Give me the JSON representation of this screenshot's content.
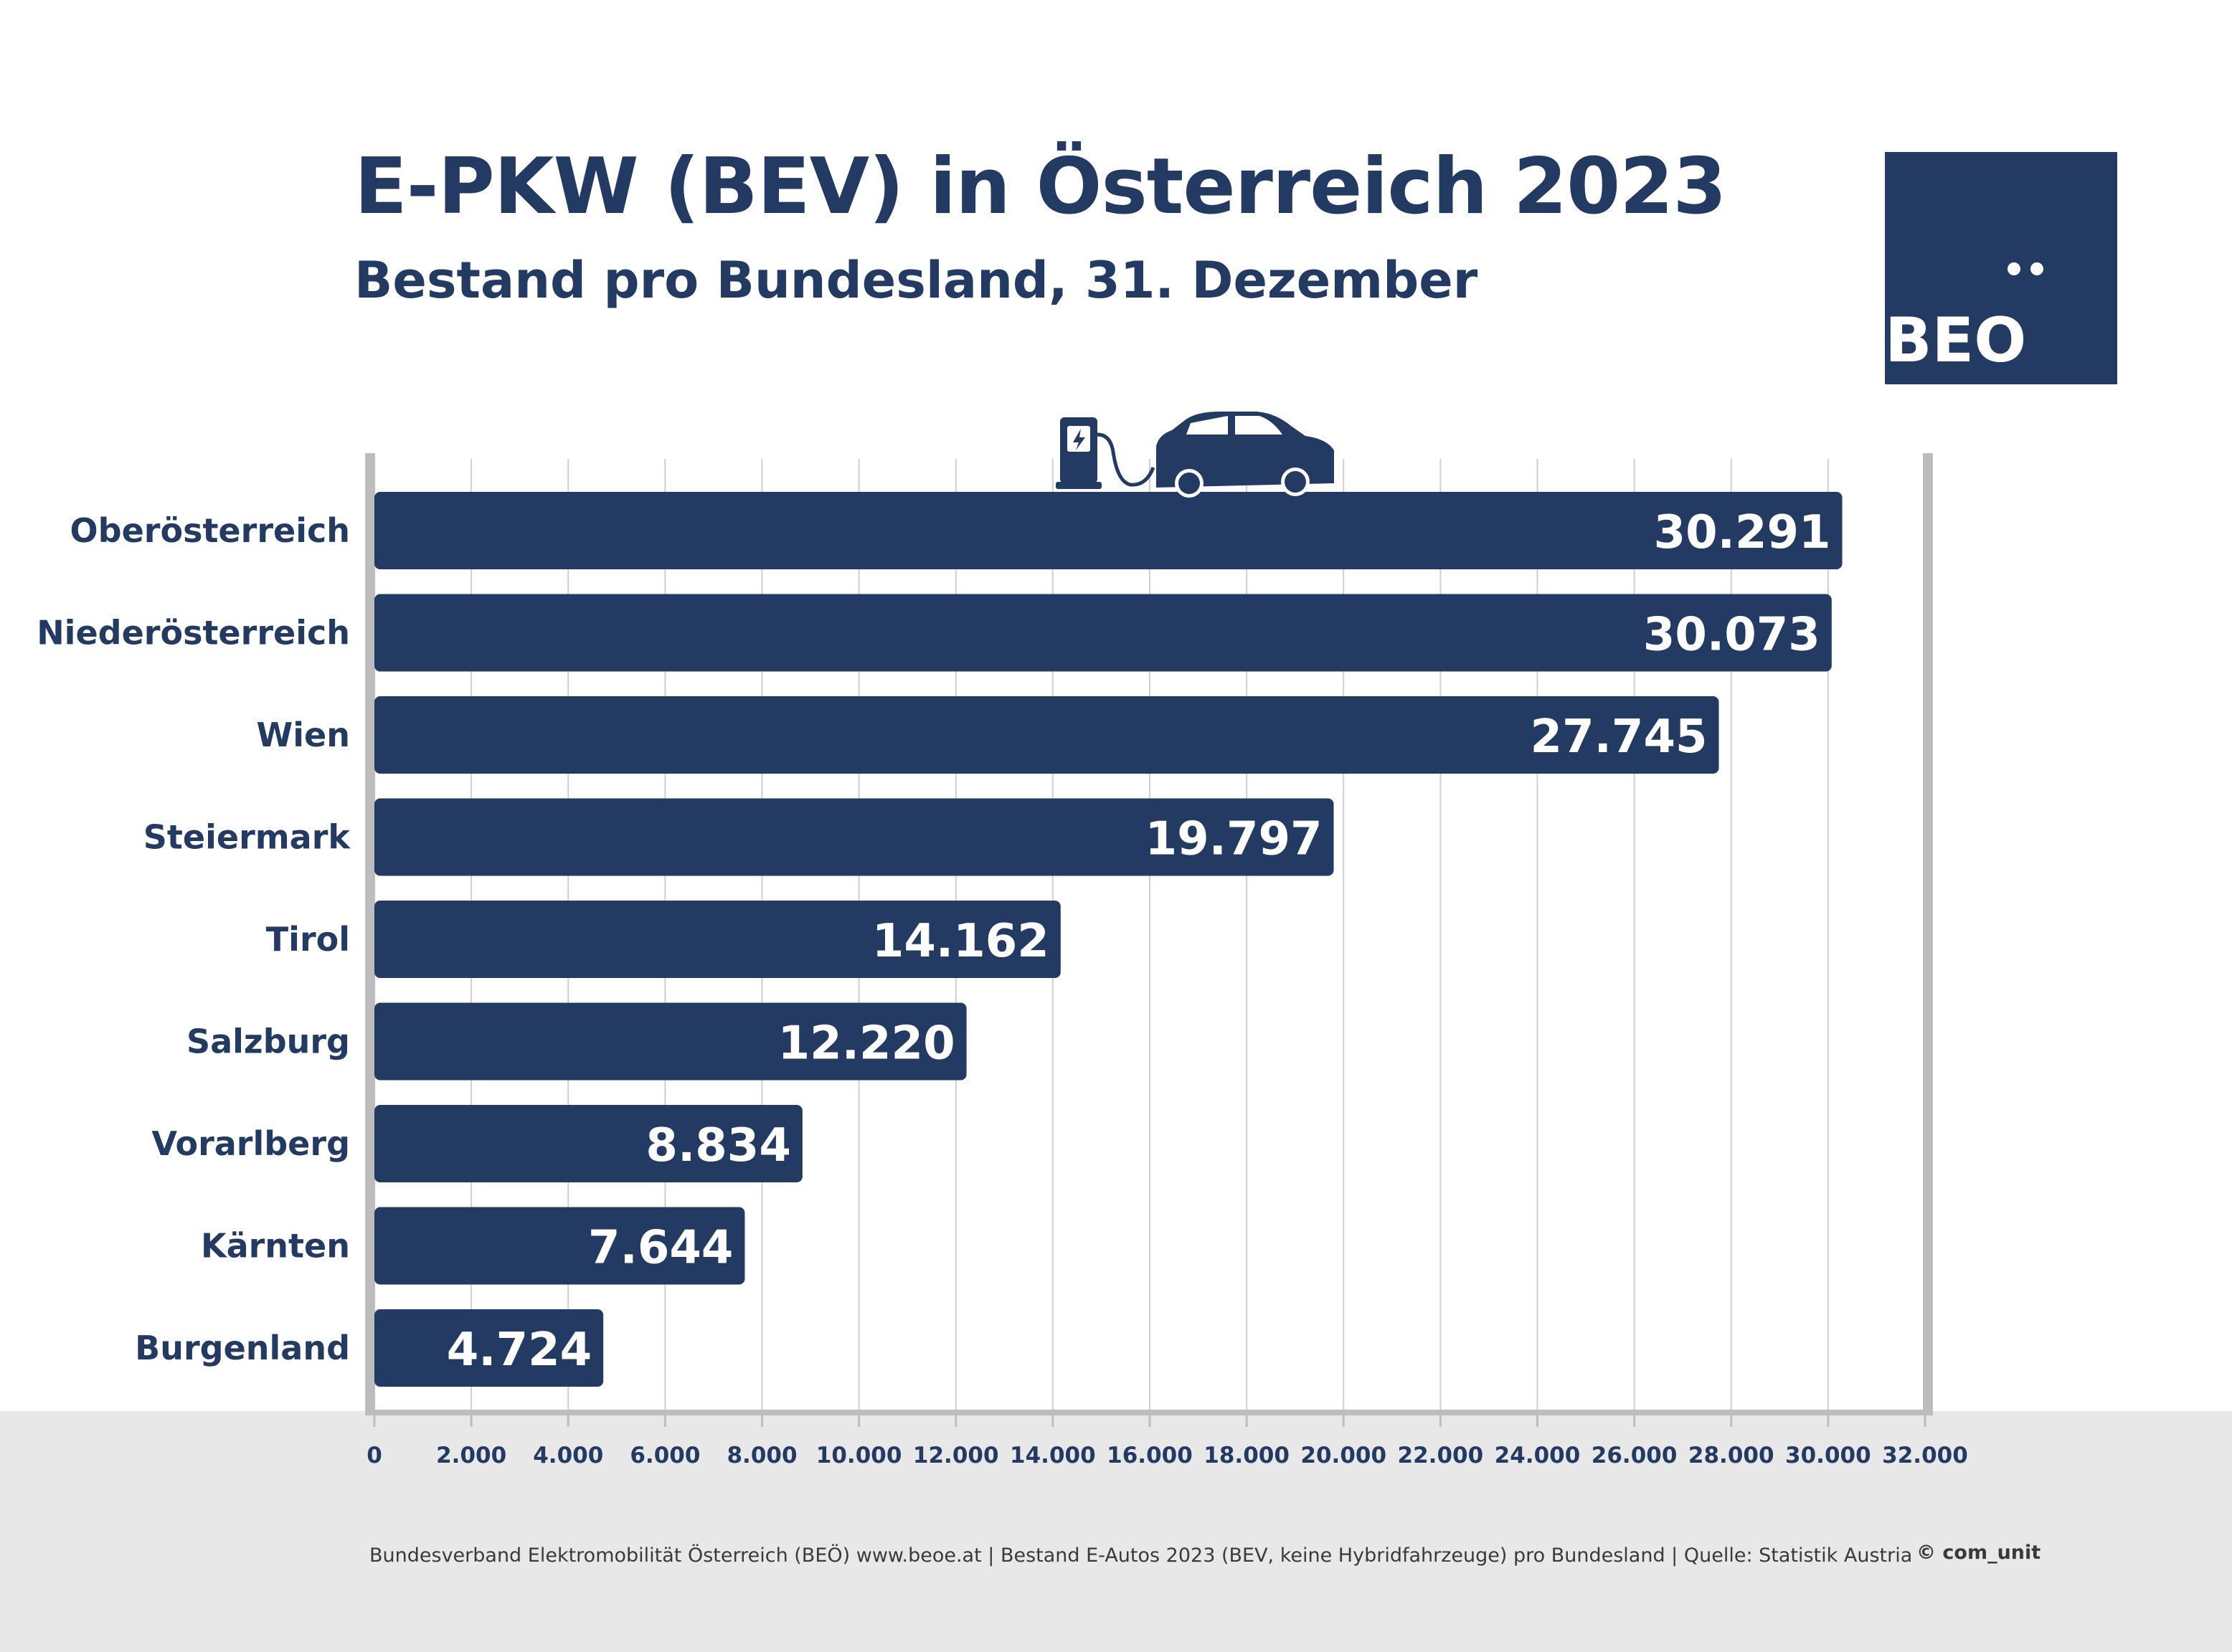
{
  "header": {
    "title": "E-PKW (BEV) in Österreich 2023",
    "subtitle": "Bestand pro Bundesland, 31. Dezember"
  },
  "logo": {
    "text": "BEO"
  },
  "footer": {
    "note": "Bundesverband Elektromobilität Österreich (BEÖ) www.beoe.at | Bestand E-Autos 2023 (BEV, keine Hybridfahrzeuge) pro Bundesland | Quelle: Statistik Austria",
    "copyright": "© com_unit"
  },
  "colors": {
    "bar": "#233a63",
    "text": "#233a63",
    "grid": "#cfcfcf",
    "frame": "#bdbdbd",
    "footer_background": "#e8e8e8"
  },
  "icons": [
    "charging-station-icon",
    "electric-car-icon"
  ],
  "chart_data": {
    "type": "bar",
    "orientation": "horizontal",
    "categories": [
      "Oberösterreich",
      "Niederösterreich",
      "Wien",
      "Steiermark",
      "Tirol",
      "Salzburg",
      "Vorarlberg",
      "Kärnten",
      "Burgenland"
    ],
    "values": [
      30291,
      30073,
      27745,
      19797,
      14162,
      12220,
      8834,
      7644,
      4724
    ],
    "value_labels": [
      "30.291",
      "30.073",
      "27.745",
      "19.797",
      "14.162",
      "12.220",
      "8.834",
      "7.644",
      "4.724"
    ],
    "xlim": [
      0,
      32000
    ],
    "xticks": [
      0,
      2000,
      4000,
      6000,
      8000,
      10000,
      12000,
      14000,
      16000,
      18000,
      20000,
      22000,
      24000,
      26000,
      28000,
      30000,
      32000
    ],
    "xtick_labels": [
      "0",
      "2.000",
      "4.000",
      "6.000",
      "8.000",
      "10.000",
      "12.000",
      "14.000",
      "16.000",
      "18.000",
      "20.000",
      "22.000",
      "24.000",
      "26.000",
      "28.000",
      "30.000",
      "32.000"
    ],
    "grid": "vertical"
  }
}
